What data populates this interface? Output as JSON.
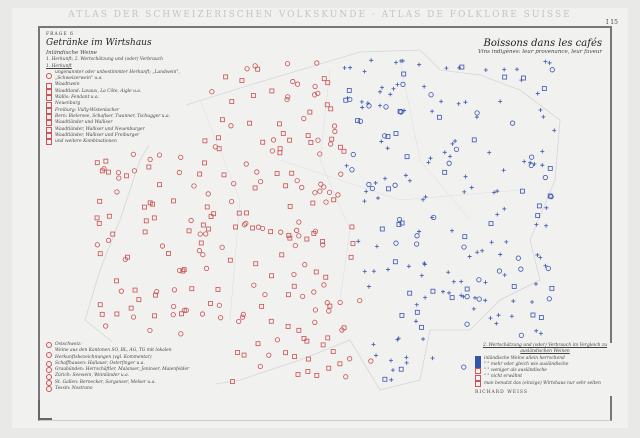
{
  "header": {
    "title": "ATLAS DER SCHWEIZERISCHEN VOLKSKUNDE · ATLAS DE FOLKLORE SUISSE",
    "page": "I 15"
  },
  "legend_top": {
    "question": "FRAGE 6",
    "title": "Getränke im Wirtshaus",
    "subtitle": "Inländische Weine",
    "scope": "1. Herkunft; 2. Wertschätzung und (oder) Verbrauch",
    "section": "1. Herkunft",
    "items": [
      "ungenannter oder unbestimmter Herkunft; „Landwein\", „Schweizerwein\" u.a.",
      "Waadtwein",
      "Waadtland: Lavaux, La Côte, Aigle u.a.",
      "Wallis: Fendant u.a.",
      "Neuenburg",
      "Freiburg: Vully-Wistenlacher",
      "Bern: Bielersee, Schafiser, Twanner, Tschugger u.a.",
      "Waadtländer und Walliser",
      "Waadtländer, Walliser und Neuenburger",
      "Waadtländer, Walliser und Freiburger",
      "und weitere Kombinationen"
    ]
  },
  "legend_bottom": {
    "items": [
      "Ostschweiz:",
      "Weine aus den Kantonen SO, BL, AG, TG mit lokalen Herkunftsbezeichnungen (vgl. Kommentar)",
      "Schaffhausen: Hallauer, Osterfinger u.a.",
      "Graubünden: Herrschäftler, Malanser, Jeninser, Maienfelder",
      "Zürich: Seewein, Weinländer u.a.",
      "St. Gallen: Bernecker, Sarganser, Melser u.a.",
      "Tessin: Nostrano"
    ]
  },
  "right_title": {
    "title": "Boissons dans les cafés",
    "subtitle": "Vins indigènes: leur provenance, leur faveur"
  },
  "legend_right": {
    "heading": "2. Wertschätzung und (oder) Verbrauch im Vergleich zu ausländischen Weinen",
    "items": [
      "inländische Weine allein herrschend",
      "\"  \"  mehr oder gleich wie ausländische",
      "\"  \"  weniger als ausländische",
      "\"  \"  nicht erwähnt",
      "man benutzt das (einzige) Wirtshaus nur sehr selten"
    ],
    "author": "RICHARD WEISS"
  },
  "colors": {
    "west_symbols": "#c85050",
    "east_symbols": "#3a55b0",
    "borders": "#d8d8dc"
  }
}
